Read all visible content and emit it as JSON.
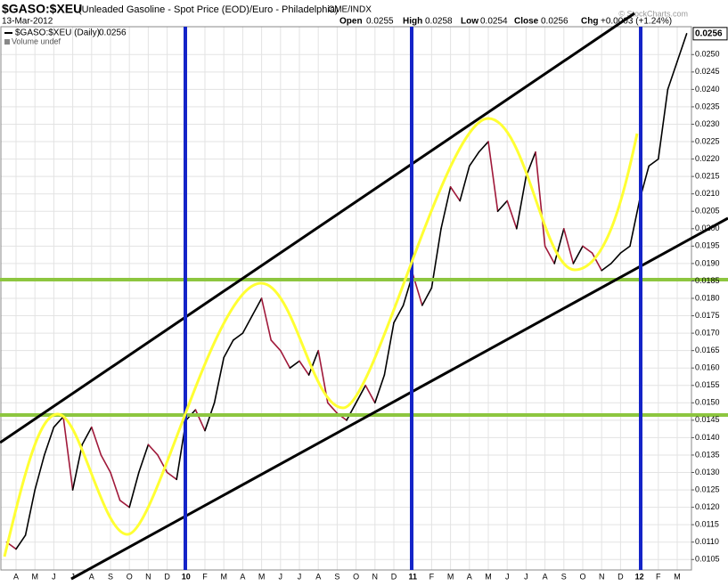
{
  "chart_data": {
    "type": "line",
    "title": "$GASO:$XEU",
    "subtitle": "(Unleaded Gasoline - Spot Price (EOD)/Euro - Philadelphia)",
    "exchange": "CME/INDX",
    "date": "13-Mar-2012",
    "quote": {
      "open_label": "Open",
      "open": 0.0255,
      "high_label": "High",
      "high": 0.0258,
      "low_label": "Low",
      "low": 0.0254,
      "close_label": "Close",
      "close": 0.0256,
      "chg_label": "Chg",
      "chg": "+0.0003 (+1.24%)"
    },
    "watermark": "© StockCharts.com",
    "volume_label": "Volume undef",
    "categories": [
      null,
      "A",
      null,
      "M",
      null,
      "J",
      null,
      "J",
      null,
      "A",
      null,
      "S",
      null,
      "O",
      null,
      "N",
      null,
      "D",
      null,
      "10",
      null,
      "F",
      null,
      "M",
      null,
      "A",
      null,
      "M",
      null,
      "J",
      null,
      "J",
      null,
      "A",
      null,
      "S",
      null,
      "O",
      null,
      "N",
      null,
      "D",
      null,
      "11",
      null,
      "F",
      null,
      "M",
      null,
      "A",
      null,
      "M",
      null,
      "J",
      null,
      "J",
      null,
      "A",
      null,
      "S",
      null,
      "O",
      null,
      "N",
      null,
      "D",
      null,
      "12",
      null,
      "F",
      null,
      "M",
      null
    ],
    "series": [
      {
        "name": "$GASO:$XEU (Daily)",
        "color": "#a0193a",
        "up_color": "#000000",
        "values": [
          0.011,
          0.0108,
          0.0112,
          0.0125,
          0.0135,
          0.0143,
          0.0146,
          0.0125,
          0.0138,
          0.0143,
          0.0135,
          0.013,
          0.0122,
          0.012,
          0.013,
          0.0138,
          0.0135,
          0.013,
          0.0128,
          0.0145,
          0.0148,
          0.0142,
          0.015,
          0.0163,
          0.0168,
          0.017,
          0.0175,
          0.018,
          0.0168,
          0.0165,
          0.016,
          0.0162,
          0.0158,
          0.0165,
          0.015,
          0.0147,
          0.0145,
          0.015,
          0.0155,
          0.015,
          0.0158,
          0.0173,
          0.0178,
          0.0187,
          0.0178,
          0.0183,
          0.02,
          0.0212,
          0.0208,
          0.0218,
          0.0222,
          0.0225,
          0.0205,
          0.0208,
          0.02,
          0.0215,
          0.0222,
          0.0195,
          0.019,
          0.02,
          0.019,
          0.0195,
          0.0193,
          0.0188,
          0.019,
          0.0193,
          0.0195,
          0.0208,
          0.0218,
          0.022,
          0.024,
          0.0248,
          0.0256
        ]
      }
    ],
    "ylim": [
      0.0102,
      0.0258
    ],
    "yticks": [
      {
        "value": 0.0105,
        "label": "0.0105"
      },
      {
        "value": 0.011,
        "label": "0.0110"
      },
      {
        "value": 0.0115,
        "label": "0.0115"
      },
      {
        "value": 0.012,
        "label": "0.0120"
      },
      {
        "value": 0.0125,
        "label": "0.0125"
      },
      {
        "value": 0.013,
        "label": "0.0130"
      },
      {
        "value": 0.0135,
        "label": "0.0135"
      },
      {
        "value": 0.014,
        "label": "0.0140"
      },
      {
        "value": 0.0145,
        "label": "0.0145"
      },
      {
        "value": 0.015,
        "label": "0.0150"
      },
      {
        "value": 0.0155,
        "label": "0.0155"
      },
      {
        "value": 0.016,
        "label": "0.0160"
      },
      {
        "value": 0.0165,
        "label": "0.0165"
      },
      {
        "value": 0.017,
        "label": "0.0170"
      },
      {
        "value": 0.0175,
        "label": "0.0175"
      },
      {
        "value": 0.018,
        "label": "0.0180"
      },
      {
        "value": 0.0185,
        "label": "0.0185"
      },
      {
        "value": 0.019,
        "label": "0.0190"
      },
      {
        "value": 0.0195,
        "label": "0.0195"
      },
      {
        "value": 0.02,
        "label": "0.0200"
      },
      {
        "value": 0.0205,
        "label": "0.0205"
      },
      {
        "value": 0.021,
        "label": "0.0210"
      },
      {
        "value": 0.0215,
        "label": "0.0215"
      },
      {
        "value": 0.022,
        "label": "0.0220"
      },
      {
        "value": 0.0225,
        "label": "0.0225"
      },
      {
        "value": 0.023,
        "label": "0.0230"
      },
      {
        "value": 0.0235,
        "label": "0.0235"
      },
      {
        "value": 0.024,
        "label": "0.0240"
      },
      {
        "value": 0.0245,
        "label": "0.0245"
      },
      {
        "value": 0.025,
        "label": "0.0250"
      }
    ],
    "grid": true
  }
}
